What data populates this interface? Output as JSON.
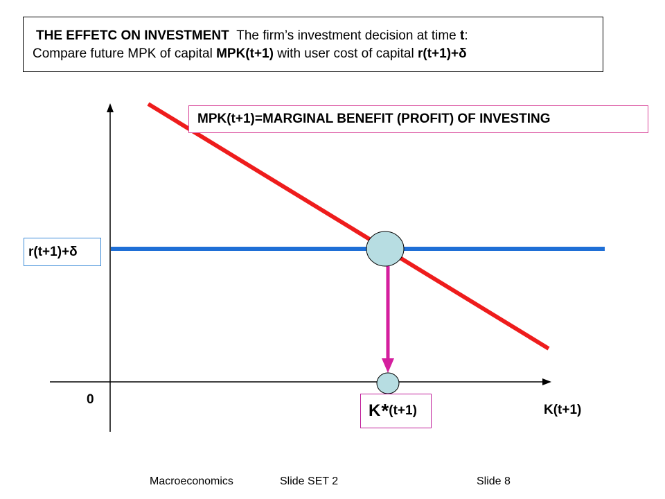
{
  "title": {
    "heading": "THE EFFETC ON INVESTMENT",
    "line1_rest_a": "The firm’s investment decision at time ",
    "line1_bold_t": "t",
    "line1_colon": ":",
    "line2_a": "Compare future MPK of capital ",
    "line2_bold_mpk": "MPK(t+1)",
    "line2_b": " with user cost of capital ",
    "line2_bold_cost": "r(t+1)+δ"
  },
  "diagram": {
    "mpk_label": "MPK(t+1)=MARGINAL BENEFIT (PROFIT) OF INVESTING",
    "rate_label": "r(t+1)+δ",
    "origin_label": "0",
    "x_axis_label": "K(t+1)",
    "kstar_k": "K",
    "kstar_star": "*",
    "kstar_rest": "(t+1)",
    "colors": {
      "mpk_line": "#ee1c1c",
      "rate_line": "#1f6fd6",
      "arrow": "#d41f9e",
      "circle_fill": "#b7dde2"
    }
  },
  "footer": {
    "course": "Macroeconomics",
    "set": "Slide SET 2",
    "slide": "Slide 8"
  }
}
